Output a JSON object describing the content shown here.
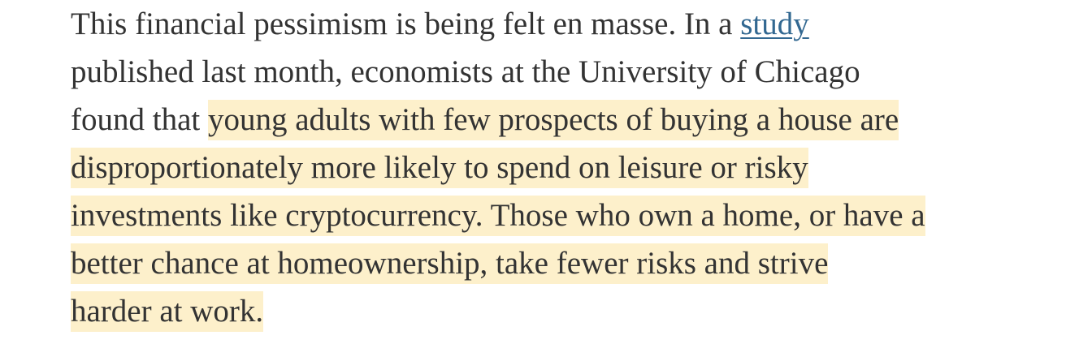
{
  "paragraph": {
    "lines": [
      {
        "segments": [
          {
            "text": "This financial pessimism is being felt en masse. In a ",
            "style": "plain"
          },
          {
            "text": "study",
            "style": "link"
          }
        ]
      },
      {
        "segments": [
          {
            "text": "published last month, economists at the University of Chicago",
            "style": "plain"
          }
        ]
      },
      {
        "segments": [
          {
            "text": "found that ",
            "style": "plain"
          },
          {
            "text": "young adults with few prospects of buying a house are",
            "style": "highlight"
          }
        ]
      },
      {
        "segments": [
          {
            "text": "disproportionately more likely to spend on leisure or risky",
            "style": "highlight"
          }
        ]
      },
      {
        "segments": [
          {
            "text": "investments like cryptocurrency. Those who own a home, or have a",
            "style": "highlight"
          }
        ]
      },
      {
        "segments": [
          {
            "text": "better chance at homeownership, take fewer risks and strive",
            "style": "highlight"
          }
        ]
      },
      {
        "segments": [
          {
            "text": "harder at work.",
            "style": "highlight"
          }
        ]
      }
    ]
  }
}
